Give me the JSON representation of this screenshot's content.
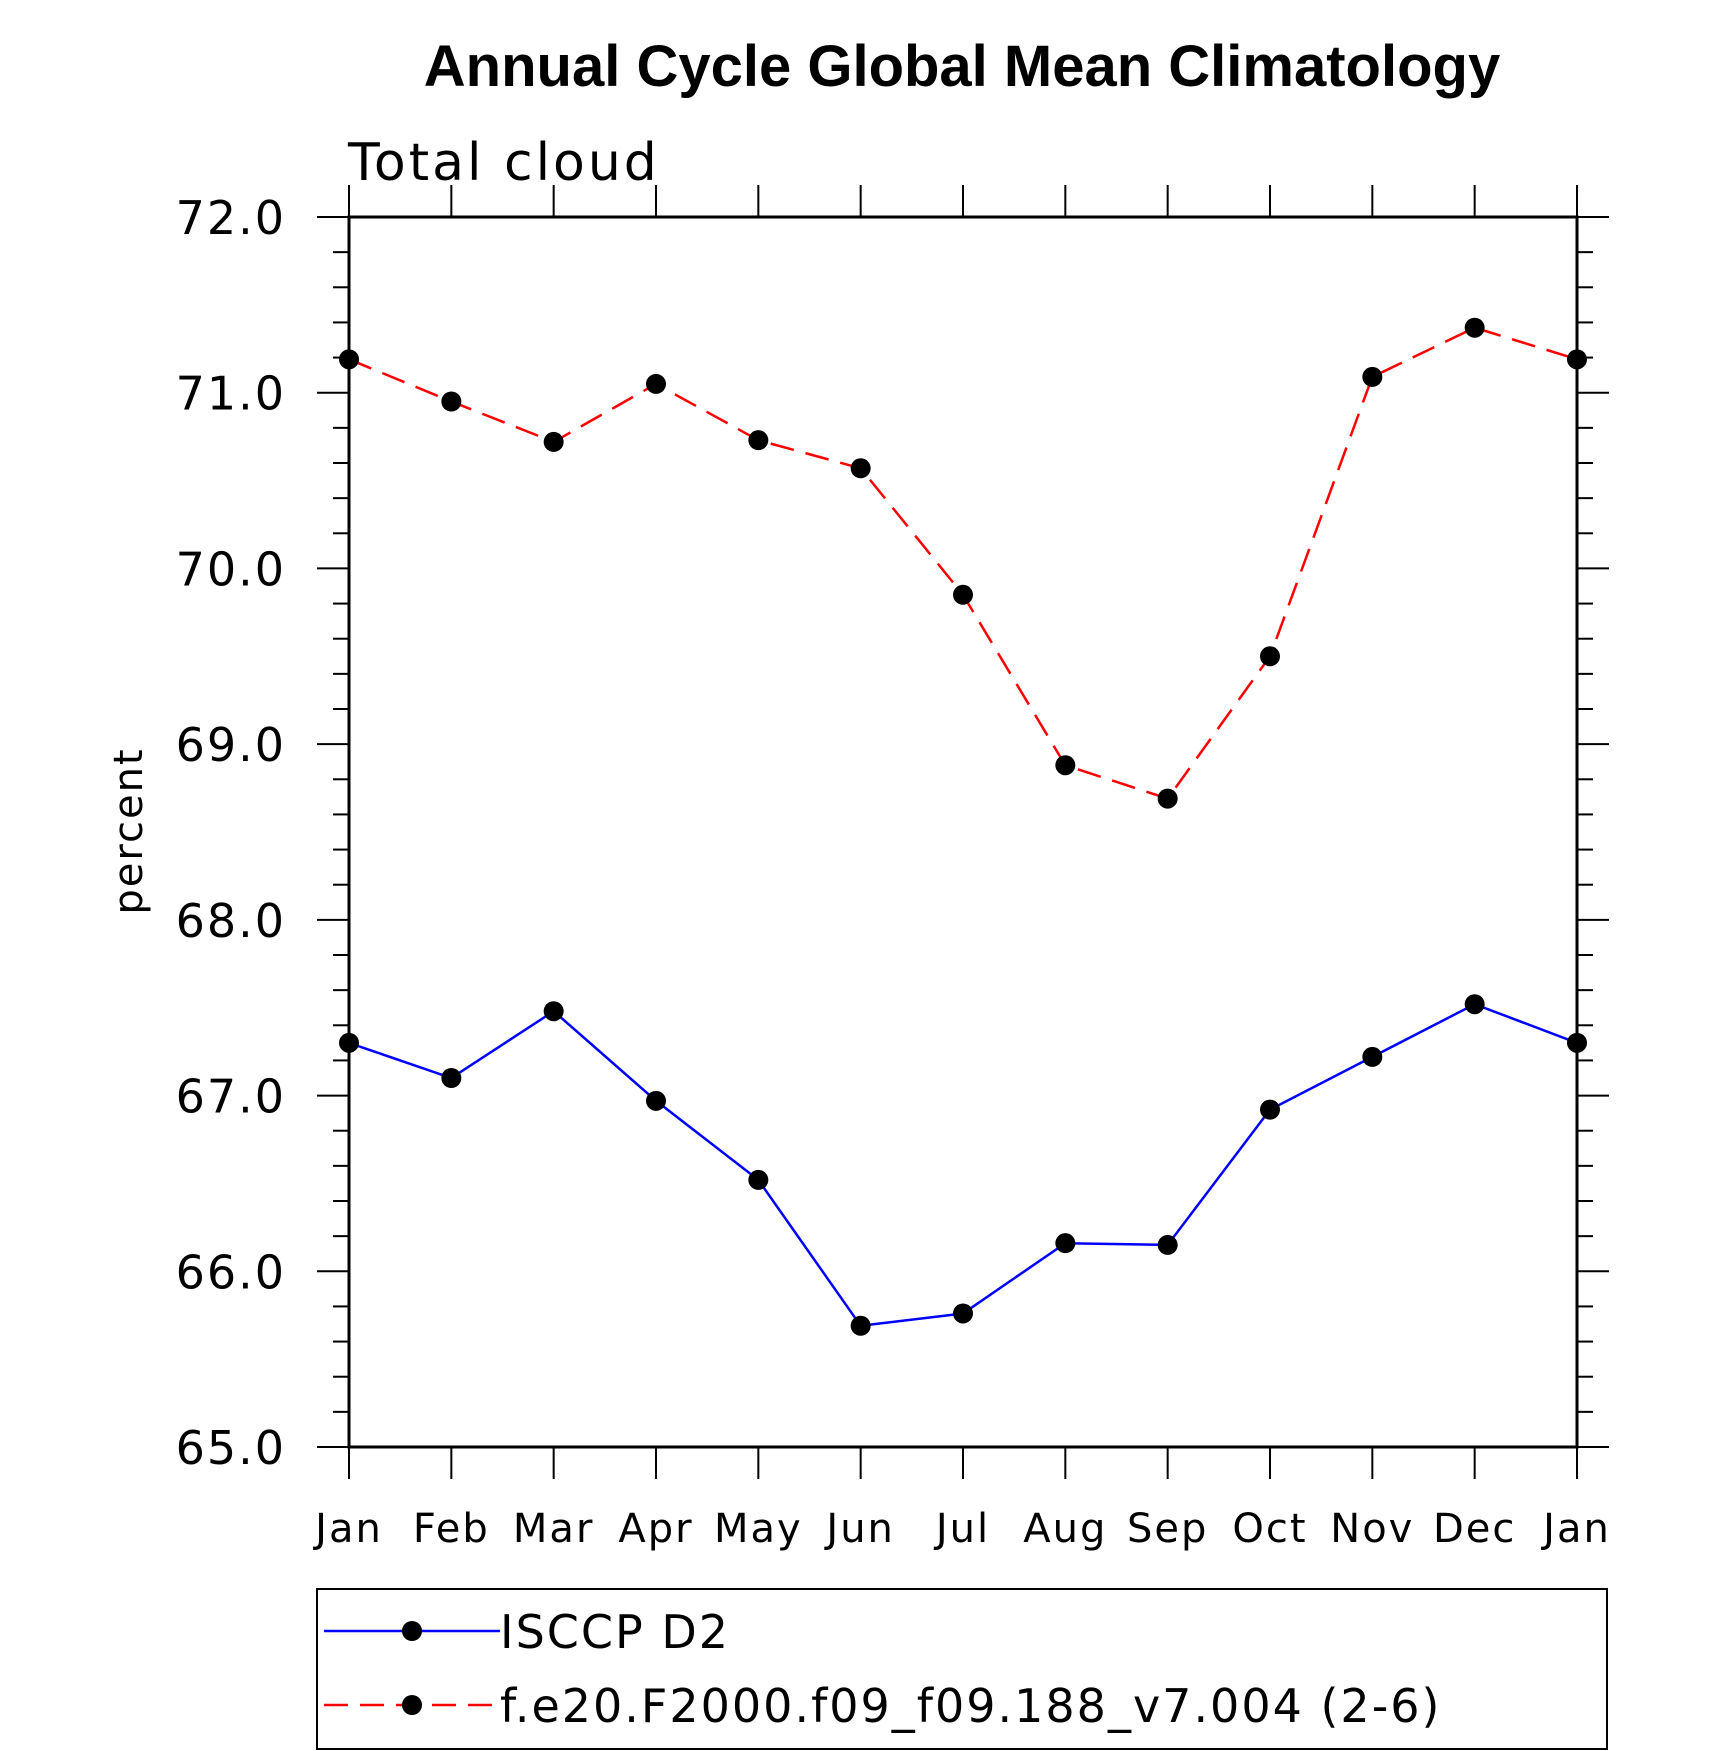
{
  "chart_data": {
    "type": "line",
    "title": "Annual Cycle Global Mean Climatology",
    "subtitle": "Total cloud",
    "xlabel": "",
    "ylabel": "percent",
    "ylim": [
      65.0,
      72.0
    ],
    "y_ticks": [
      "65.0",
      "66.0",
      "67.0",
      "68.0",
      "69.0",
      "70.0",
      "71.0",
      "72.0"
    ],
    "categories": [
      "Jan",
      "Feb",
      "Mar",
      "Apr",
      "May",
      "Jun",
      "Jul",
      "Aug",
      "Sep",
      "Oct",
      "Nov",
      "Dec",
      "Jan"
    ],
    "series": [
      {
        "name": "ISCCP D2",
        "color": "#0000ff",
        "line_style": "solid",
        "marker": "filled-circle",
        "values": [
          67.3,
          67.1,
          67.48,
          66.97,
          66.52,
          65.69,
          65.76,
          66.16,
          66.15,
          66.92,
          67.22,
          67.52,
          67.3
        ]
      },
      {
        "name": "f.e20.F2000.f09_f09.188_v7.004 (2-6)",
        "color": "#ff0000",
        "line_style": "dashed",
        "marker": "filled-circle",
        "values": [
          71.19,
          70.95,
          70.72,
          71.05,
          70.73,
          70.57,
          69.85,
          68.88,
          68.69,
          69.5,
          71.09,
          71.37,
          71.19
        ]
      }
    ],
    "grid": false,
    "legend_position": "bottom"
  }
}
